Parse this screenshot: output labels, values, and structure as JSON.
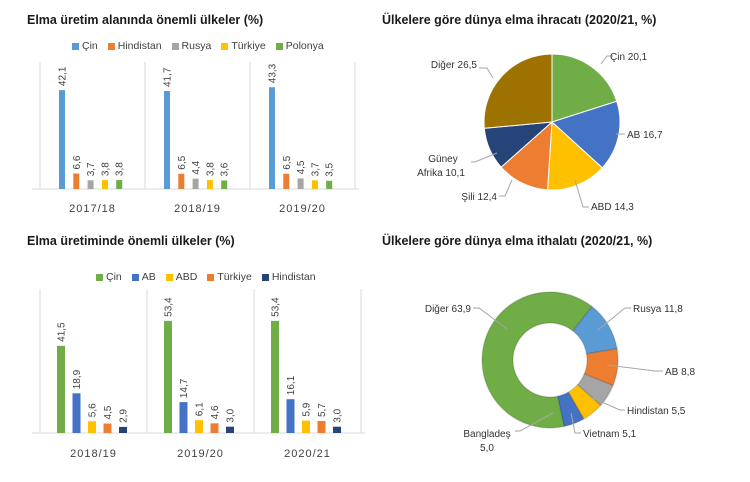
{
  "chart_data": [
    {
      "id": "area",
      "type": "bar",
      "title": "Elma üretim alanında önemli ülkeler (%)",
      "categories": [
        "2017/18",
        "2018/19",
        "2019/20"
      ],
      "series": [
        {
          "name": "Çin",
          "color": "#5b9bd5",
          "values": [
            42.1,
            41.7,
            43.3
          ],
          "labels": [
            "42,1",
            "41,7",
            "43,3"
          ]
        },
        {
          "name": "Hindistan",
          "color": "#ed7d31",
          "values": [
            6.6,
            6.5,
            6.5
          ],
          "labels": [
            "6,6",
            "6,5",
            "6,5"
          ]
        },
        {
          "name": "Rusya",
          "color": "#a5a5a5",
          "values": [
            3.7,
            4.4,
            4.5
          ],
          "labels": [
            "3,7",
            "4,4",
            "4,5"
          ]
        },
        {
          "name": "Türkiye",
          "color": "#ffc000",
          "values": [
            3.8,
            3.8,
            3.7
          ],
          "labels": [
            "3,8",
            "3,8",
            "3,7"
          ]
        },
        {
          "name": "Polonya",
          "color": "#70ad47",
          "values": [
            3.8,
            3.6,
            3.5
          ],
          "labels": [
            "3,8",
            "3,6",
            "3,5"
          ]
        }
      ],
      "legend_position": "top",
      "grid": false
    },
    {
      "id": "production",
      "type": "bar",
      "title": "Elma üretiminde önemli ülkeler (%)",
      "categories": [
        "2018/19",
        "2019/20",
        "2020/21"
      ],
      "series": [
        {
          "name": "Çin",
          "color": "#70ad47",
          "values": [
            41.5,
            53.4,
            53.4
          ],
          "labels": [
            "41,5",
            "53,4",
            "53,4"
          ]
        },
        {
          "name": "AB",
          "color": "#4472c4",
          "values": [
            18.9,
            14.7,
            16.1
          ],
          "labels": [
            "18,9",
            "14,7",
            "16,1"
          ]
        },
        {
          "name": "ABD",
          "color": "#ffc000",
          "values": [
            5.6,
            6.1,
            5.9
          ],
          "labels": [
            "5,6",
            "6,1",
            "5,9"
          ]
        },
        {
          "name": "Türkiye",
          "color": "#ed7d31",
          "values": [
            4.5,
            4.6,
            5.7
          ],
          "labels": [
            "4,5",
            "4,6",
            "5,7"
          ]
        },
        {
          "name": "Hindistan",
          "color": "#264478",
          "values": [
            2.9,
            3.0,
            3.0
          ],
          "labels": [
            "2,9",
            "3,0",
            "3,0"
          ]
        }
      ],
      "legend_position": "top",
      "grid": false
    },
    {
      "id": "exports",
      "type": "pie",
      "title": "Ülkelere göre dünya elma ihracatı (2020/21, %)",
      "slices": [
        {
          "name": "Çin",
          "value": 20.1,
          "label": "Çin 20,1",
          "color": "#70ad47"
        },
        {
          "name": "AB",
          "value": 16.7,
          "label": "AB 16,7",
          "color": "#4472c4"
        },
        {
          "name": "ABD",
          "value": 14.3,
          "label": "ABD 14,3",
          "color": "#ffc000"
        },
        {
          "name": "Şili",
          "value": 12.4,
          "label": "Şili 12,4",
          "color": "#ed7d31"
        },
        {
          "name": "Güney Afrika",
          "value": 10.1,
          "label_line1": "Güney",
          "label_line2": "Afrika 10,1",
          "color": "#264478"
        },
        {
          "name": "Diğer",
          "value": 26.5,
          "label": "Diğer 26,5",
          "color": "#9e7200"
        }
      ]
    },
    {
      "id": "imports",
      "type": "pie",
      "subtype": "donut",
      "title": "Ülkelere göre dünya elma ithalatı (2020/21, %)",
      "slices": [
        {
          "name": "Rusya",
          "value": 11.8,
          "label": "Rusya 11,8",
          "color": "#5b9bd5"
        },
        {
          "name": "AB",
          "value": 8.8,
          "label": "AB 8,8",
          "color": "#ed7d31"
        },
        {
          "name": "Hindistan",
          "value": 5.5,
          "label": "Hindistan 5,5",
          "color": "#a5a5a5"
        },
        {
          "name": "Vietnam",
          "value": 5.1,
          "label": "Vietnam 5,1",
          "color": "#ffc000"
        },
        {
          "name": "Bangladeş",
          "value": 5.0,
          "label_line1": "Bangladeş",
          "label_line2": "5,0",
          "color": "#4472c4"
        },
        {
          "name": "Diğer",
          "value": 63.9,
          "label": "Diğer 63,9",
          "color": "#70ad47"
        }
      ]
    }
  ]
}
